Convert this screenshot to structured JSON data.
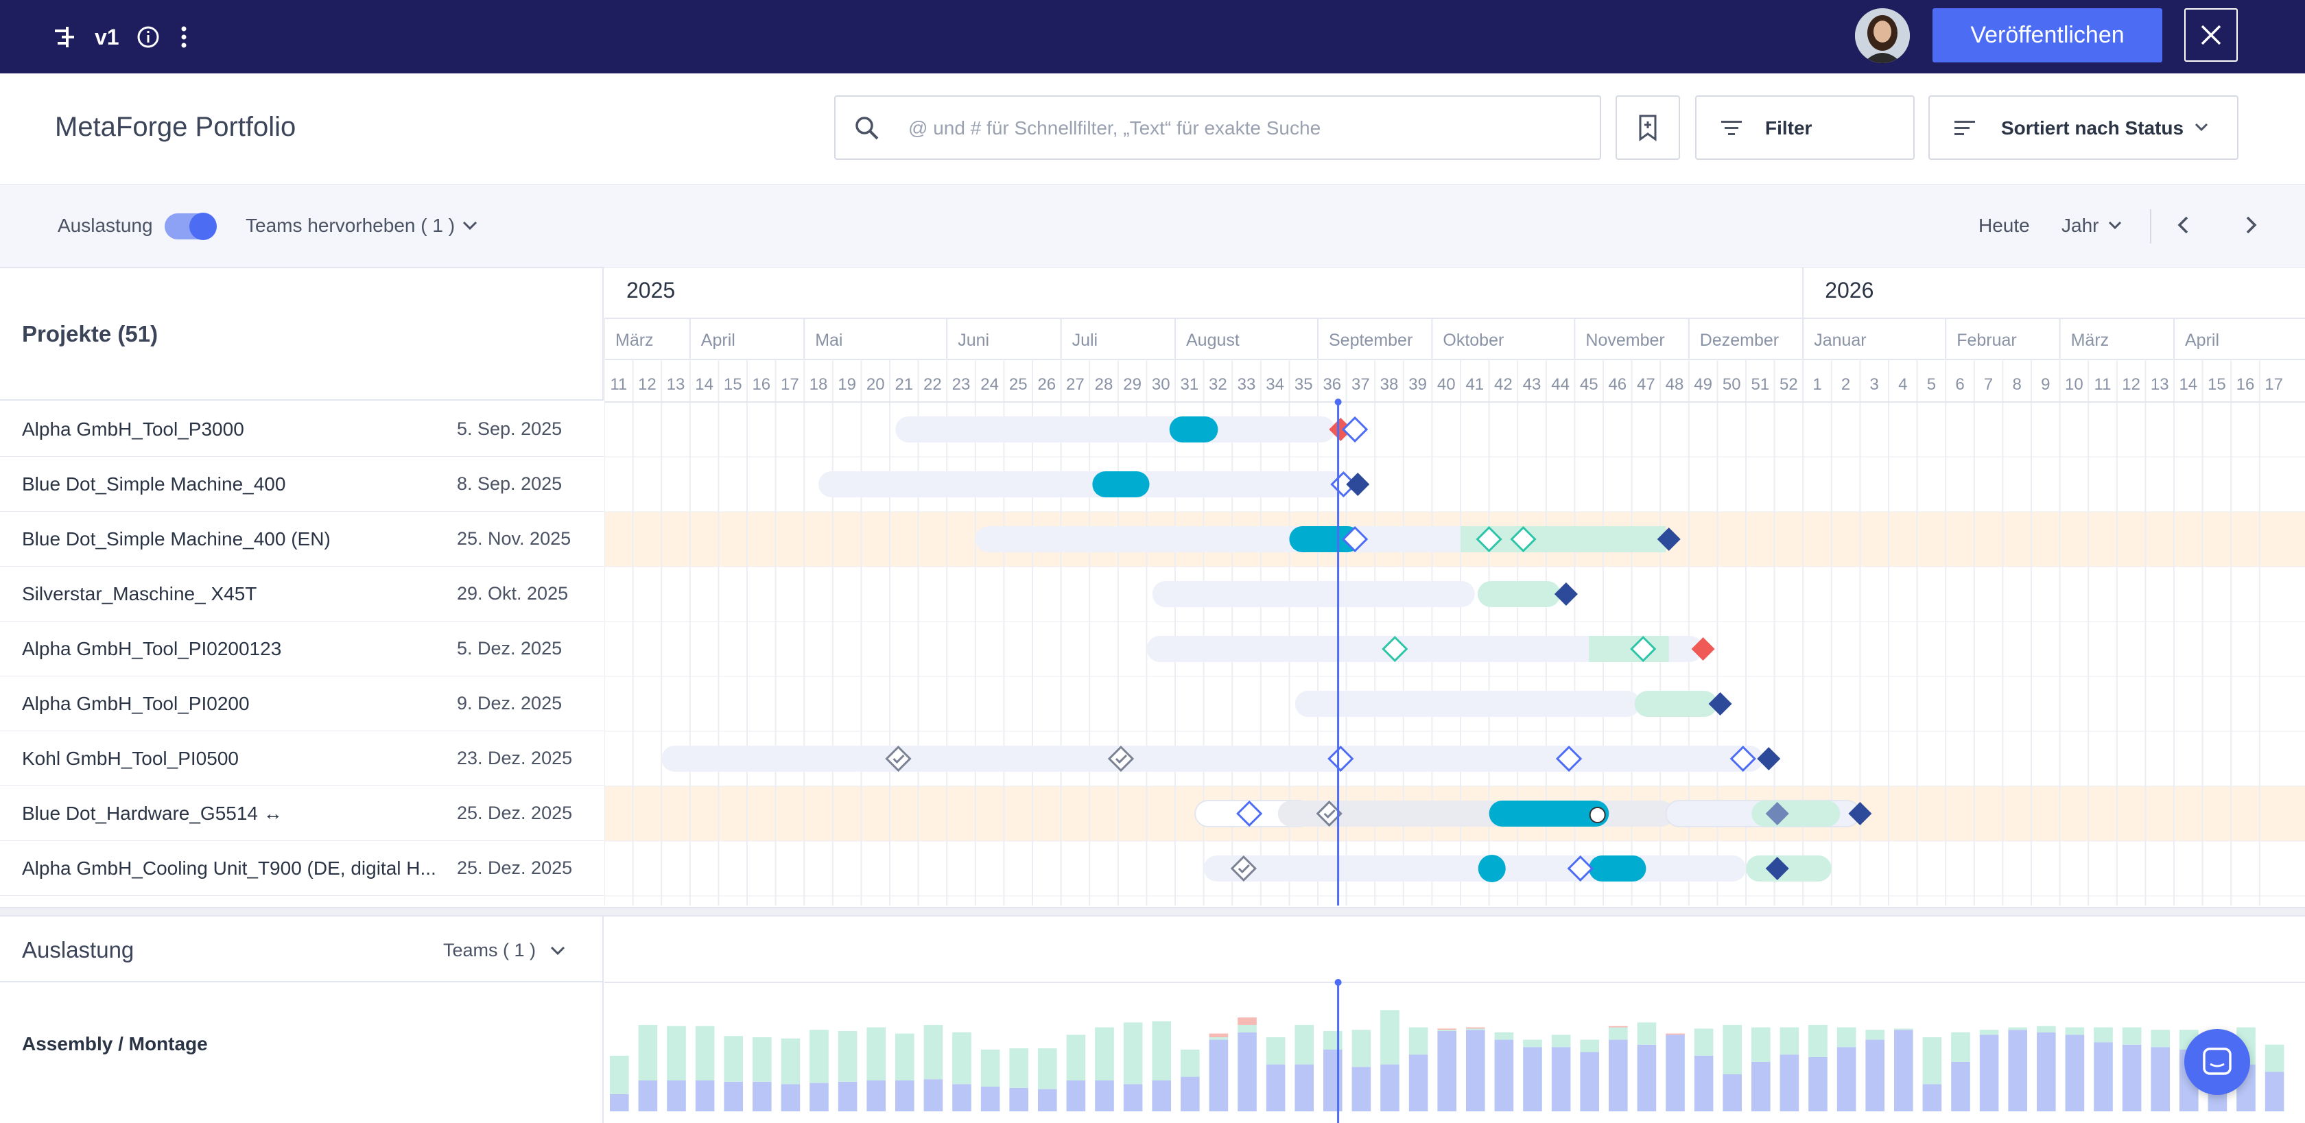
{
  "topbar": {
    "version": "v1",
    "publish_label": "Veröffentlichen"
  },
  "header": {
    "title": "MetaForge Portfolio",
    "search_placeholder": "@ und # für Schnellfilter, „Text“ für exakte Suche",
    "filter_label": "Filter",
    "sort_label": "Sortiert nach Status"
  },
  "toolbar": {
    "utilization_label": "Auslastung",
    "utilization_on": true,
    "teams_highlight_label": "Teams hervorheben ( 1 )",
    "today_label": "Heute",
    "zoom_label": "Jahr"
  },
  "projects": {
    "title": "Projekte (51)",
    "rows": [
      {
        "name": "Alpha GmbH_Tool_P3000",
        "date": "5. Sep. 2025"
      },
      {
        "name": "Blue Dot_Simple Machine_400",
        "date": "8. Sep. 2025"
      },
      {
        "name": "Blue Dot_Simple Machine_400 (EN)",
        "date": "25. Nov. 2025"
      },
      {
        "name": "Silverstar_Maschine_ X45T",
        "date": "29. Okt. 2025"
      },
      {
        "name": "Alpha GmbH_Tool_PI0200123",
        "date": "5. Dez. 2025"
      },
      {
        "name": "Alpha GmbH_Tool_PI0200",
        "date": "9. Dez. 2025"
      },
      {
        "name": "Kohl GmbH_Tool_PI0500",
        "date": "23. Dez. 2025"
      },
      {
        "name": "Blue Dot_Hardware_G5514 ↔",
        "date": "25. Dez. 2025"
      },
      {
        "name": "Alpha GmbH_Cooling Unit_T900 (DE, digital H...",
        "date": "25. Dez. 2025"
      }
    ]
  },
  "timeline": {
    "years": [
      "2025",
      "2026"
    ],
    "months": [
      "März",
      "April",
      "Mai",
      "Juni",
      "Juli",
      "August",
      "September",
      "Oktober",
      "November",
      "Dezember",
      "Januar",
      "Februar",
      "März",
      "April"
    ],
    "weeks": [
      "11",
      "12",
      "13",
      "14",
      "15",
      "16",
      "17",
      "18",
      "19",
      "20",
      "21",
      "22",
      "23",
      "24",
      "25",
      "26",
      "27",
      "28",
      "29",
      "30",
      "31",
      "32",
      "33",
      "34",
      "35",
      "36",
      "37",
      "38",
      "39",
      "40",
      "41",
      "42",
      "43",
      "44",
      "45",
      "46",
      "47",
      "48",
      "49",
      "50",
      "51",
      "52",
      "1",
      "2",
      "3",
      "4",
      "5",
      "6",
      "7",
      "8",
      "9",
      "10",
      "11",
      "12",
      "13",
      "14",
      "15",
      "16",
      "17"
    ],
    "current_week": "37",
    "colors": {
      "accent": "#4d6cf4",
      "teal": "#00acd0",
      "green_light": "#cdf0e2",
      "milestone_dark": "#2d4a9a",
      "milestone_red": "#ef5a57",
      "highlight_row": "#fff2e2"
    }
  },
  "utilization": {
    "title": "Auslastung",
    "teams_label": "Teams ( 1 )",
    "team_name": "Assembly / Montage",
    "chart_data": {
      "type": "bar",
      "series": [
        {
          "values": [
            0.14,
            0.25,
            0.25,
            0.25,
            0.24,
            0.24,
            0.22,
            0.23,
            0.24,
            0.25,
            0.25,
            0.26,
            0.22,
            0.2,
            0.19,
            0.18,
            0.25,
            0.25,
            0.22,
            0.25,
            0.28,
            0.58,
            0.64,
            0.38,
            0.38,
            0.5,
            0.36,
            0.38,
            0.46,
            0.65,
            0.66,
            0.58,
            0.52,
            0.52,
            0.48,
            0.58,
            0.54,
            0.62,
            0.45,
            0.3,
            0.4,
            0.46,
            0.44,
            0.52,
            0.58,
            0.66,
            0.22,
            0.4,
            0.62,
            0.66,
            0.64,
            0.62,
            0.56,
            0.54,
            0.52,
            0.5,
            0.36,
            0.38,
            0.32
          ]
        },
        {
          "values": [
            0.31,
            0.45,
            0.44,
            0.44,
            0.37,
            0.36,
            0.37,
            0.43,
            0.41,
            0.43,
            0.38,
            0.44,
            0.42,
            0.3,
            0.32,
            0.33,
            0.37,
            0.43,
            0.5,
            0.48,
            0.22,
            0.02,
            0.06,
            0.22,
            0.32,
            0.15,
            0.3,
            0.44,
            0.22,
            0.01,
            0.01,
            0.06,
            0.06,
            0.1,
            0.1,
            0.1,
            0.18,
            0.0,
            0.22,
            0.4,
            0.28,
            0.22,
            0.26,
            0.16,
            0.08,
            0.01,
            0.38,
            0.24,
            0.04,
            0.02,
            0.05,
            0.06,
            0.12,
            0.14,
            0.14,
            0.16,
            0.28,
            0.3,
            0.22
          ]
        },
        {
          "values": [
            0,
            0,
            0,
            0,
            0,
            0,
            0,
            0,
            0,
            0,
            0,
            0,
            0,
            0,
            0,
            0,
            0,
            0,
            0,
            0,
            0,
            0.03,
            0.06,
            0,
            0,
            0,
            0,
            0,
            0,
            0.01,
            0.01,
            0,
            0,
            0,
            0,
            0.01,
            0,
            0.01,
            0,
            0,
            0,
            0,
            0,
            0,
            0,
            0,
            0,
            0,
            0,
            0,
            0,
            0,
            0,
            0,
            0,
            0,
            0,
            0,
            0
          ]
        }
      ]
    }
  }
}
